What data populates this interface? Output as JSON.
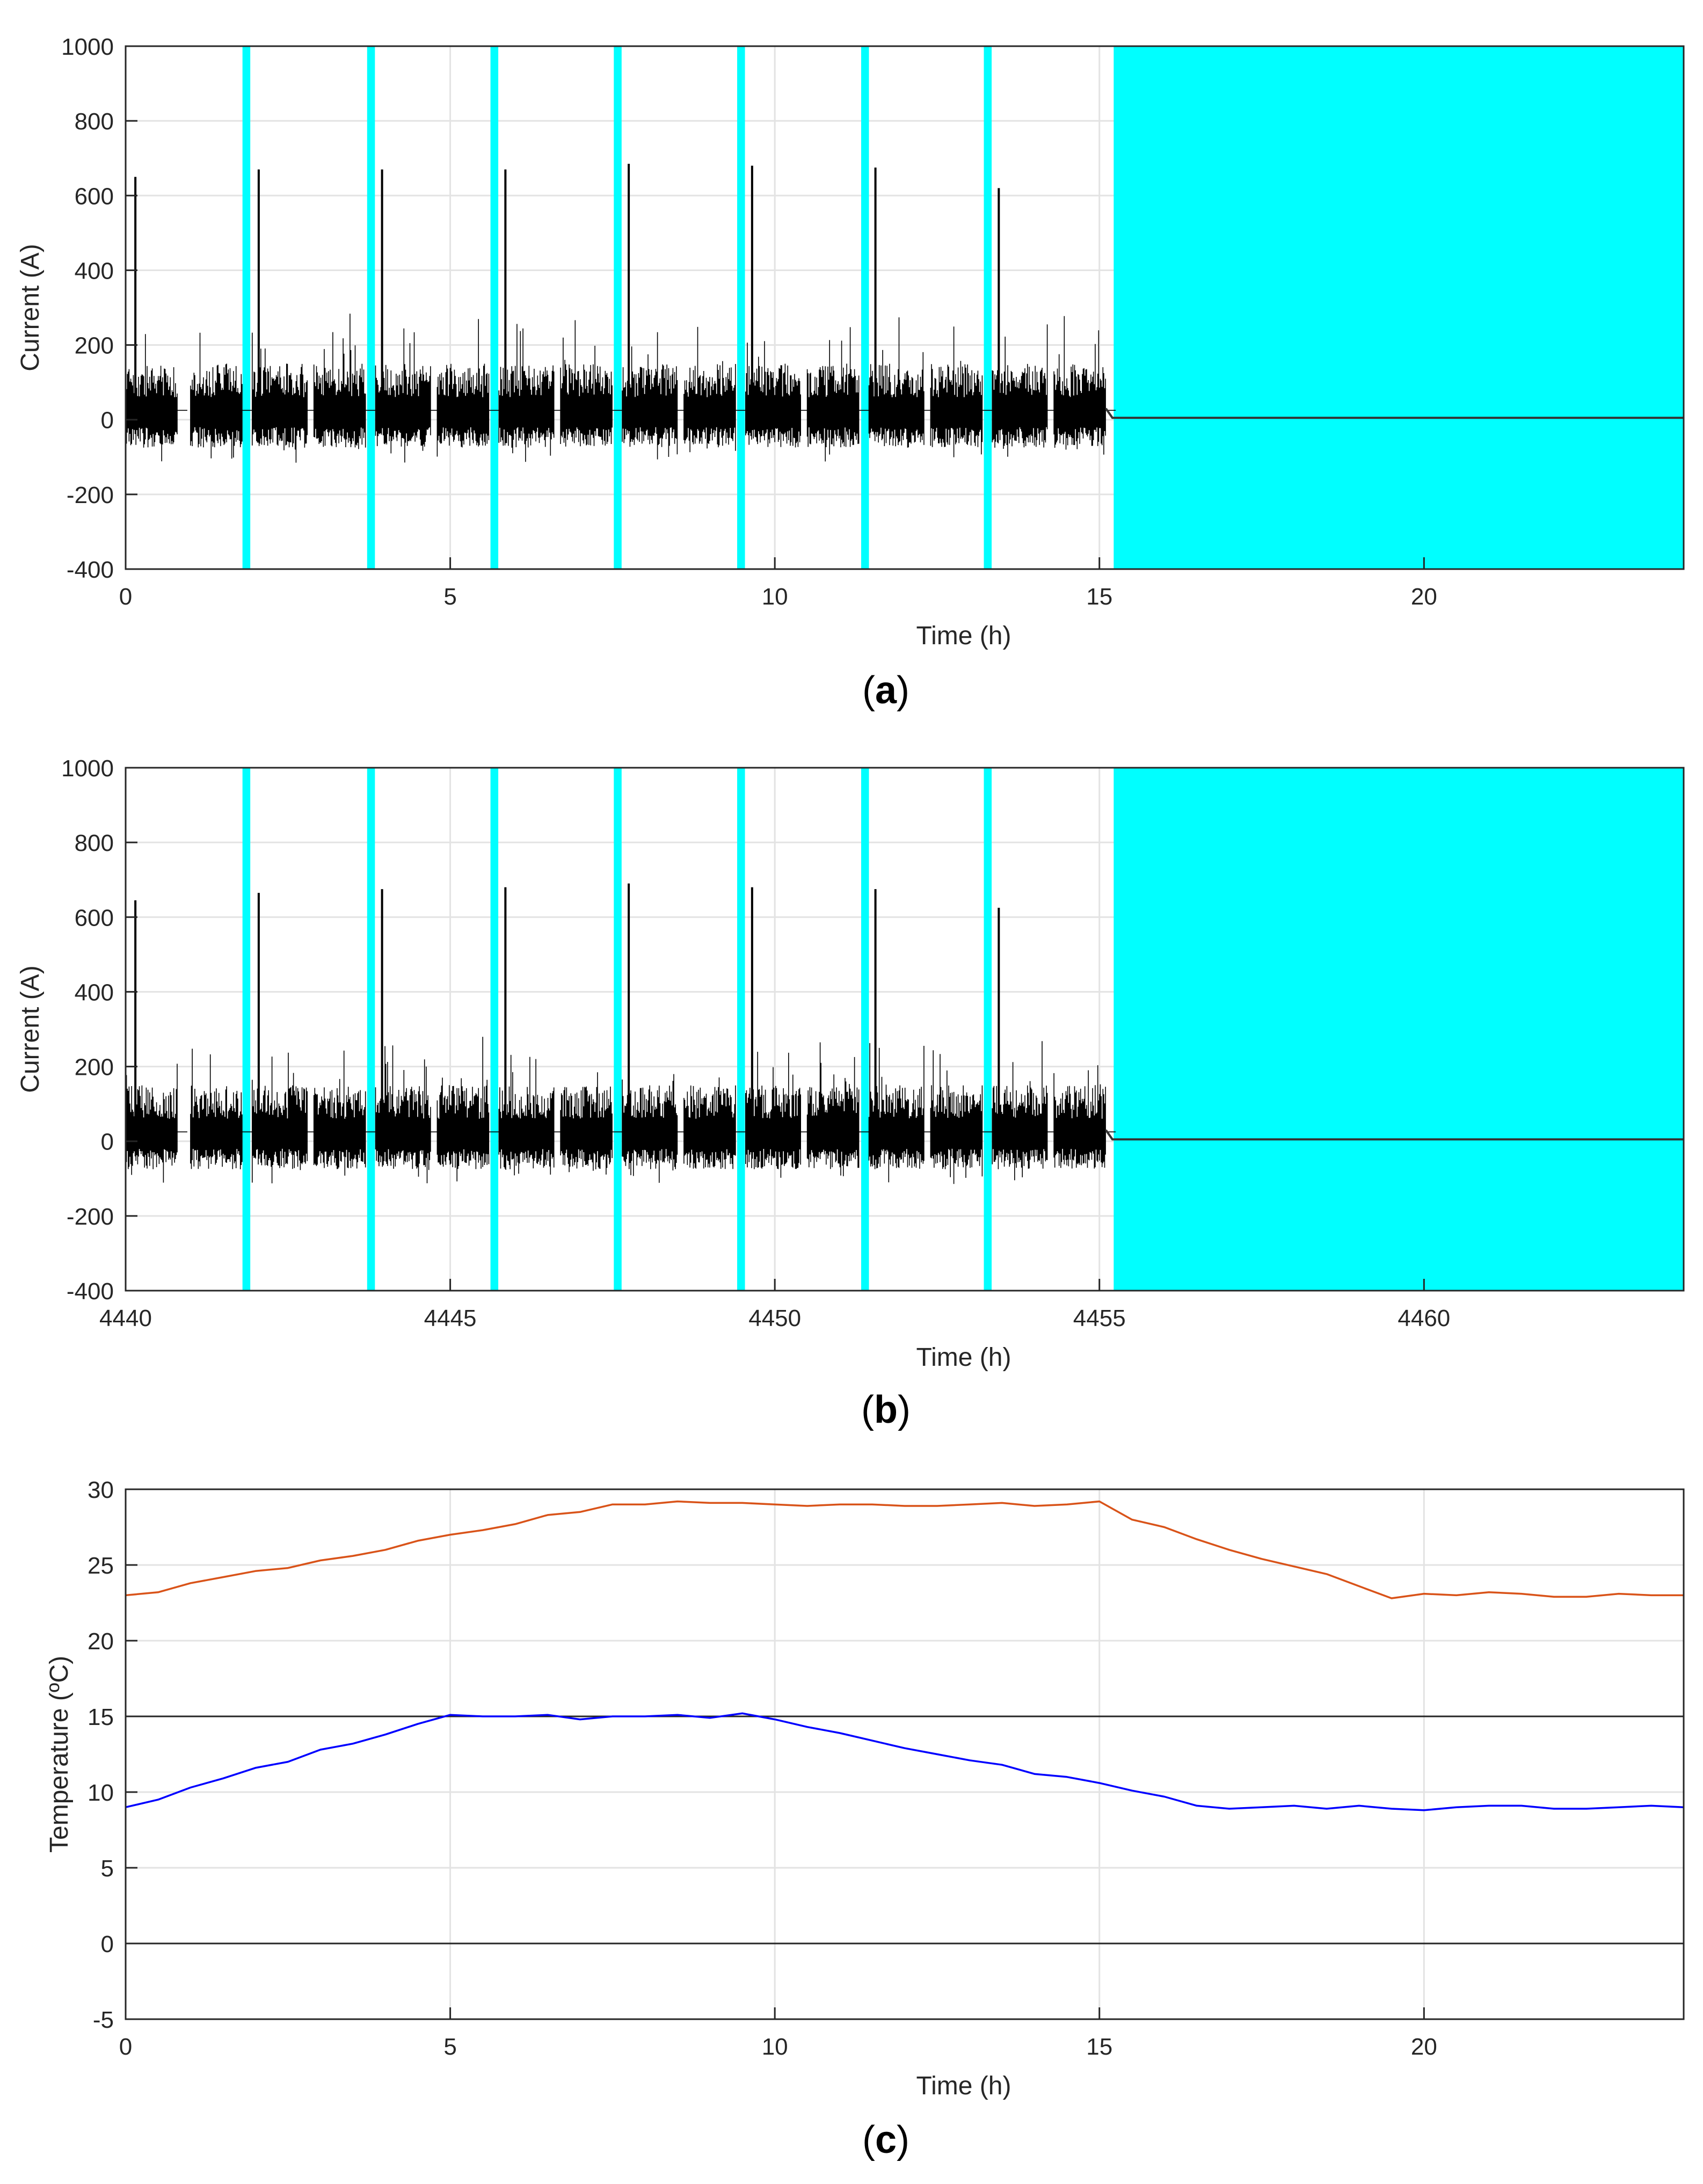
{
  "chart_data": [
    {
      "type": "line",
      "panel_label": "a",
      "xlabel": "Time (h)",
      "ylabel": "Current (A)",
      "xlim": [
        0,
        24
      ],
      "ylim": [
        -400,
        1000
      ],
      "x_ticks": [
        0,
        5,
        10,
        15,
        20
      ],
      "y_ticks": [
        -400,
        -200,
        0,
        200,
        400,
        600,
        800,
        1000
      ],
      "grid": true,
      "series": [
        {
          "color": "#000000",
          "style": "dense current trace: bursts between about -100 and 280 A with a startup peak near 650 A in each block, zero after service ends",
          "block_ranges": [
            [
              0,
              0.8
            ],
            [
              1,
              1.8
            ],
            [
              1.95,
              2.8
            ],
            [
              2.9,
              3.7
            ],
            [
              3.85,
              4.7
            ],
            [
              4.8,
              5.6
            ],
            [
              5.75,
              6.6
            ],
            [
              6.7,
              7.5
            ],
            [
              7.65,
              8.5
            ],
            [
              8.6,
              9.4
            ],
            [
              9.55,
              10.4
            ],
            [
              10.5,
              11.3
            ],
            [
              11.45,
              12.3
            ],
            [
              12.4,
              13.2
            ],
            [
              13.35,
              14.2
            ],
            [
              14.3,
              15.1
            ]
          ],
          "startup_peaks": [
            [
              0.15,
              650
            ],
            [
              2.05,
              670
            ],
            [
              3.95,
              670
            ],
            [
              5.85,
              670
            ],
            [
              7.75,
              685
            ],
            [
              9.65,
              680
            ],
            [
              11.55,
              675
            ],
            [
              13.45,
              620
            ]
          ],
          "after_service": [
            [
              15.1,
              30
            ],
            [
              15.2,
              5
            ],
            [
              24,
              5
            ]
          ]
        }
      ],
      "highlight_bands": {
        "color": "#00ffff",
        "spans": [
          [
            1.8,
            1.92
          ],
          [
            3.72,
            3.84
          ],
          [
            5.62,
            5.74
          ],
          [
            7.52,
            7.64
          ],
          [
            9.42,
            9.54
          ],
          [
            11.33,
            11.45
          ],
          [
            13.22,
            13.34
          ],
          [
            15.22,
            24
          ]
        ]
      }
    },
    {
      "type": "line",
      "panel_label": "b",
      "xlabel": "Time (h)",
      "ylabel": "Current (A)",
      "xlim": [
        4440,
        4464
      ],
      "ylim": [
        -400,
        1000
      ],
      "x_ticks": [
        4440,
        4445,
        4450,
        4455,
        4460
      ],
      "y_ticks": [
        -400,
        -200,
        0,
        200,
        400,
        600,
        800,
        1000
      ],
      "grid": true,
      "series": [
        {
          "color": "#000000",
          "style": "dense current trace: bursts between about -100 and 290 A with a startup peak near 650 A in each block, zero after service ends",
          "block_ranges": [
            [
              4440,
              4440.8
            ],
            [
              4441,
              4441.8
            ],
            [
              4441.95,
              4442.8
            ],
            [
              4442.9,
              4443.7
            ],
            [
              4443.85,
              4444.7
            ],
            [
              4444.8,
              4445.6
            ],
            [
              4445.75,
              4446.6
            ],
            [
              4446.7,
              4447.5
            ],
            [
              4447.65,
              4448.5
            ],
            [
              4448.6,
              4449.4
            ],
            [
              4449.55,
              4450.4
            ],
            [
              4450.5,
              4451.3
            ],
            [
              4451.45,
              4452.3
            ],
            [
              4452.4,
              4453.2
            ],
            [
              4453.35,
              4454.2
            ],
            [
              4454.3,
              4455.1
            ]
          ],
          "startup_peaks": [
            [
              4440.15,
              645
            ],
            [
              4442.05,
              665
            ],
            [
              4443.95,
              675
            ],
            [
              4445.85,
              680
            ],
            [
              4447.75,
              690
            ],
            [
              4449.65,
              680
            ],
            [
              4451.55,
              675
            ],
            [
              4453.45,
              625
            ]
          ],
          "after_service": [
            [
              4455.1,
              30
            ],
            [
              4455.2,
              5
            ],
            [
              4464,
              5
            ]
          ]
        }
      ],
      "highlight_bands": {
        "color": "#00ffff",
        "spans": [
          [
            4441.8,
            4441.92
          ],
          [
            4443.72,
            4443.84
          ],
          [
            4445.62,
            4445.74
          ],
          [
            4447.52,
            4447.64
          ],
          [
            4449.42,
            4449.54
          ],
          [
            4451.33,
            4451.45
          ],
          [
            4453.22,
            4453.34
          ],
          [
            4455.22,
            4464
          ]
        ]
      }
    },
    {
      "type": "line",
      "panel_label": "c",
      "xlabel": "Time (h)",
      "ylabel": "Temperature (ºC)",
      "xlim": [
        0,
        24
      ],
      "ylim": [
        -5,
        30
      ],
      "x_ticks": [
        0,
        5,
        10,
        15,
        20
      ],
      "y_ticks": [
        -5,
        0,
        5,
        10,
        15,
        20,
        25,
        30
      ],
      "grid": true,
      "reference_lines": [
        0,
        15
      ],
      "series": [
        {
          "color": "#d95319",
          "x": [
            0,
            0.5,
            1,
            1.5,
            2,
            2.5,
            3,
            3.5,
            4,
            4.5,
            5,
            5.5,
            6,
            6.5,
            7,
            7.5,
            8,
            8.5,
            9,
            9.5,
            10,
            10.5,
            11,
            11.5,
            12,
            12.5,
            13,
            13.5,
            14,
            14.5,
            15,
            15.5,
            16,
            16.5,
            17,
            17.5,
            18,
            18.5,
            19,
            19.5,
            20,
            20.5,
            21,
            21.5,
            22,
            22.5,
            23,
            23.5,
            24
          ],
          "y": [
            23.0,
            23.2,
            23.8,
            24.2,
            24.6,
            24.8,
            25.3,
            25.6,
            26.0,
            26.6,
            27.0,
            27.3,
            27.7,
            28.3,
            28.5,
            29.0,
            29.0,
            29.2,
            29.1,
            29.1,
            29.0,
            28.9,
            29.0,
            29.0,
            28.9,
            28.9,
            29.0,
            29.1,
            28.9,
            29.0,
            29.2,
            28.0,
            27.5,
            26.7,
            26.0,
            25.4,
            24.9,
            24.4,
            23.6,
            22.8,
            23.1,
            23.0,
            23.2,
            23.1,
            22.9,
            22.9,
            23.1,
            23.0,
            23.0
          ]
        },
        {
          "color": "#0000ff",
          "x": [
            0,
            0.5,
            1,
            1.5,
            2,
            2.5,
            3,
            3.5,
            4,
            4.5,
            5,
            5.5,
            6,
            6.5,
            7,
            7.5,
            8,
            8.5,
            9,
            9.5,
            10,
            10.5,
            11,
            11.5,
            12,
            12.5,
            13,
            13.5,
            14,
            14.5,
            15,
            15.5,
            16,
            16.5,
            17,
            17.5,
            18,
            18.5,
            19,
            19.5,
            20,
            20.5,
            21,
            21.5,
            22,
            22.5,
            23,
            23.5,
            24
          ],
          "y": [
            9.0,
            9.5,
            10.3,
            10.9,
            11.6,
            12.0,
            12.8,
            13.2,
            13.8,
            14.5,
            15.1,
            15.0,
            15.0,
            15.1,
            14.8,
            15.0,
            15.0,
            15.1,
            14.9,
            15.2,
            14.8,
            14.3,
            13.9,
            13.4,
            12.9,
            12.5,
            12.1,
            11.8,
            11.2,
            11.0,
            10.6,
            10.1,
            9.7,
            9.1,
            8.9,
            9.0,
            9.1,
            8.9,
            9.1,
            8.9,
            8.8,
            9.0,
            9.1,
            9.1,
            8.9,
            8.9,
            9.0,
            9.1,
            9.0
          ]
        }
      ]
    }
  ]
}
